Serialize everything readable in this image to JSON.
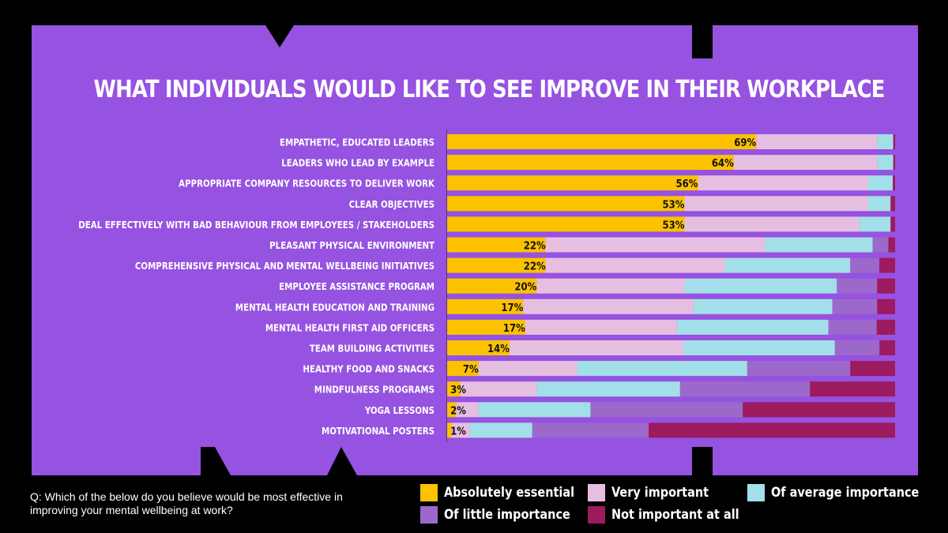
{
  "colors": {
    "background": "#000000",
    "panel": "#9652e0",
    "absolutely_essential": "#fcc200",
    "very_important": "#e6bfe0",
    "of_average_importance": "#a2dfe8",
    "of_little_importance": "#9c69cb",
    "not_important_at_all": "#9c1a5e"
  },
  "question": "Q: Which of the below do you believe would be most effective in improving your mental wellbeing at work?",
  "chart_data": {
    "type": "bar",
    "orientation": "horizontal",
    "stacked": true,
    "title": "WHAT INDIVIDUALS WOULD LIKE TO SEE IMPROVE IN THEIR WORKPLACE",
    "xlim": [
      0,
      100
    ],
    "categories": [
      "EMPATHETIC, EDUCATED LEADERS",
      "LEADERS WHO LEAD BY EXAMPLE",
      "APPROPRIATE COMPANY RESOURCES TO DELIVER WORK",
      "CLEAR OBJECTIVES",
      "DEAL EFFECTIVELY WITH BAD BEHAVIOUR FROM EMPLOYEES / STAKEHOLDERS",
      "PLEASANT PHYSICAL ENVIRONMENT",
      "COMPREHENSIVE PHYSICAL AND MENTAL WELLBEING INITIATIVES",
      "EMPLOYEE ASSISTANCE PROGRAM",
      "MENTAL HEALTH EDUCATION AND TRAINING",
      "MENTAL HEALTH FIRST AID OFFICERS",
      "TEAM BUILDING ACTIVITIES",
      "HEALTHY FOOD AND SNACKS",
      "MINDFULNESS PROGRAMS",
      "YOGA LESSONS",
      "MOTIVATIONAL POSTERS"
    ],
    "data_labels": [
      "69%",
      "64%",
      "56%",
      "53%",
      "53%",
      "22%",
      "22%",
      "20%",
      "17%",
      "17%",
      "14%",
      "7%",
      "3%",
      "2%",
      "1%"
    ],
    "series": [
      {
        "name": "Absolutely essential",
        "color": "#fcc200",
        "values": [
          69,
          64,
          56,
          53,
          53,
          22,
          22,
          20,
          17,
          17,
          14,
          7,
          3,
          2,
          1
        ]
      },
      {
        "name": "Very important",
        "color": "#e6bfe0",
        "values": [
          27,
          32,
          38,
          41,
          39,
          49,
          40,
          33,
          38,
          33,
          39,
          22,
          17,
          5,
          4
        ]
      },
      {
        "name": "Of average importance",
        "color": "#a2dfe8",
        "values": [
          3.6,
          3.6,
          5.5,
          5.0,
          7.0,
          24,
          28,
          34,
          31,
          33,
          34,
          38,
          32,
          25,
          14
        ]
      },
      {
        "name": "Of little importance",
        "color": "#9c69cb",
        "values": [
          0,
          0,
          0,
          0,
          0,
          3.5,
          6.5,
          9,
          10,
          10.5,
          10,
          23,
          29,
          34,
          26
        ]
      },
      {
        "name": "Not important at all",
        "color": "#9c1a5e",
        "values": [
          0.4,
          0.4,
          0.5,
          1.0,
          1.0,
          1.5,
          3.5,
          4,
          4,
          4,
          3.5,
          10,
          19,
          34,
          55
        ]
      }
    ]
  }
}
